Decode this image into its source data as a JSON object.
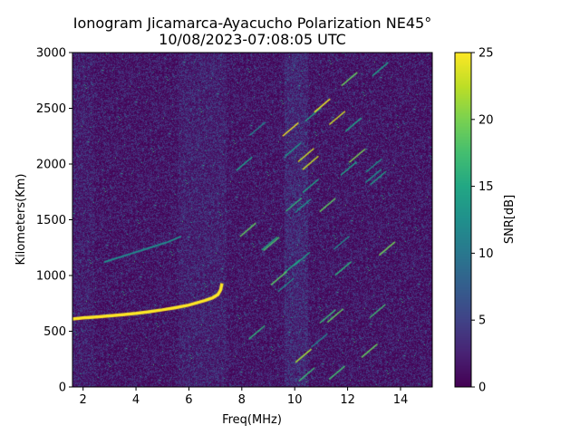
{
  "chart_data": {
    "type": "heatmap",
    "title": "Ionogram Jicamarca-Ayacucho Polarization NE45°",
    "subtitle": "10/08/2023-07:08:05 UTC",
    "xlabel": "Freq(MHz)",
    "ylabel": "Kilometers(Km)",
    "xlim": [
      1.6,
      15.2
    ],
    "ylim": [
      0,
      3000
    ],
    "xticks": [
      2,
      4,
      6,
      8,
      10,
      12,
      14
    ],
    "yticks": [
      0,
      500,
      1000,
      1500,
      2000,
      2500,
      3000
    ],
    "colorbar": {
      "label": "SNR[dB]",
      "range": [
        0,
        25
      ],
      "ticks": [
        0,
        5,
        10,
        15,
        20,
        25
      ],
      "colormap": "viridis"
    },
    "traces": [
      {
        "freq": [
          1.6,
          2.0,
          2.5,
          3.0,
          3.5,
          4.0,
          4.5,
          5.0,
          5.5,
          6.0,
          6.3,
          6.6,
          6.9,
          7.1,
          7.2,
          7.25
        ],
        "range": [
          610,
          620,
          628,
          638,
          648,
          660,
          675,
          692,
          712,
          735,
          755,
          775,
          800,
          830,
          870,
          930
        ],
        "snr": 25
      },
      {
        "freq": [
          2.8,
          3.2,
          3.6,
          4.0,
          4.4,
          4.8,
          5.2,
          5.5,
          5.7
        ],
        "range": [
          1120,
          1150,
          1180,
          1210,
          1240,
          1270,
          1300,
          1330,
          1350
        ],
        "snr": 12
      }
    ]
  },
  "colors": {
    "viridis_low": "#440154",
    "viridis_mid": "#21918c",
    "viridis_high": "#fde725"
  }
}
